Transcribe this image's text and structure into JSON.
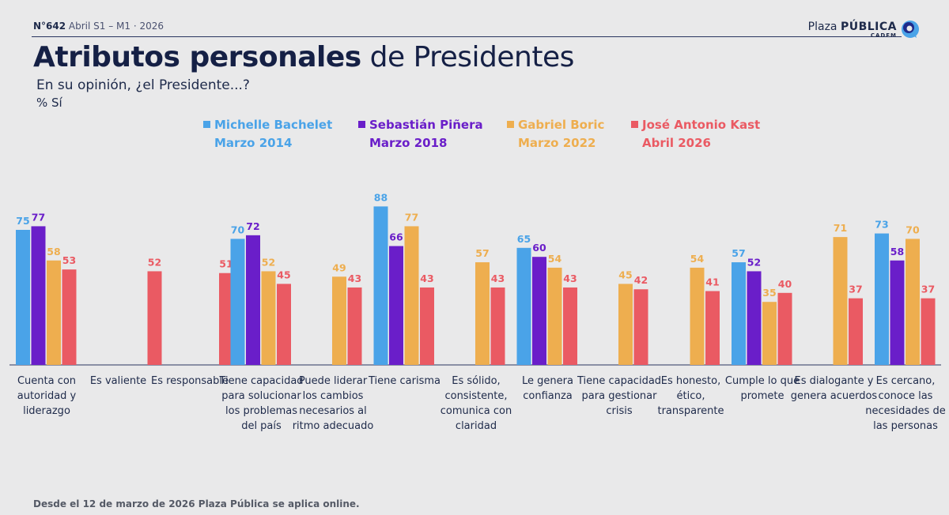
{
  "header": {
    "issue_number": "N°642",
    "issue_period": "Abril S1 – M1 · 2026",
    "brand_name": "Plaza",
    "brand_strong": "PÚBLICA",
    "brand_sub": "CADEM"
  },
  "title_strong": "Atributos personales",
  "title_rest": "de Presidentes",
  "subtitle": "En su opinión, ¿el Presidente...?",
  "unit_label": "% Sí",
  "footnote": "Desde el 12 de marzo de 2026 Plaza Pública se aplica online.",
  "colors": {
    "bachelet": "#4aa3e8",
    "pinera": "#6a1ec9",
    "boric": "#eeae4f",
    "kast": "#ea5a63",
    "text_dark": "#1e2a4a",
    "axis": "#2a3560"
  },
  "chart_data": {
    "type": "bar",
    "title": "Atributos personales de Presidentes",
    "xlabel": "",
    "ylabel": "% Sí",
    "ylim": [
      0,
      100
    ],
    "grid": false,
    "legend": "top",
    "categories": [
      "Cuenta con autoridad y liderazgo",
      "Es valiente",
      "Es responsable",
      "Tiene capacidad para solucionar los problemas del país",
      "Puede liderar los cambios necesarios al ritmo adecuado",
      "Tiene carisma",
      "Es sólido, consistente, comunica con claridad",
      "Le genera confianza",
      "Tiene capacidad para gestionar crisis",
      "Es honesto, ético, transparente",
      "Cumple lo que promete",
      "Es dialogante y genera acuerdos",
      "Es cercano, conoce las necesidades de las personas"
    ],
    "series": [
      {
        "name": "Michelle Bachelet",
        "period": "Marzo 2014",
        "color_key": "bachelet",
        "values": [
          75,
          null,
          null,
          70,
          null,
          88,
          null,
          65,
          null,
          null,
          57,
          null,
          73
        ]
      },
      {
        "name": "Sebastián Piñera",
        "period": "Marzo 2018",
        "color_key": "pinera",
        "values": [
          77,
          null,
          null,
          72,
          null,
          66,
          null,
          60,
          null,
          null,
          52,
          null,
          58
        ]
      },
      {
        "name": "Gabriel Boric",
        "period": "Marzo 2022",
        "color_key": "boric",
        "values": [
          58,
          null,
          null,
          52,
          49,
          77,
          57,
          54,
          45,
          54,
          35,
          71,
          70
        ]
      },
      {
        "name": "José Antonio Kast",
        "period": "Abril 2026",
        "color_key": "kast",
        "values": [
          53,
          52,
          51,
          45,
          43,
          43,
          43,
          43,
          42,
          41,
          40,
          37,
          37
        ]
      }
    ]
  }
}
